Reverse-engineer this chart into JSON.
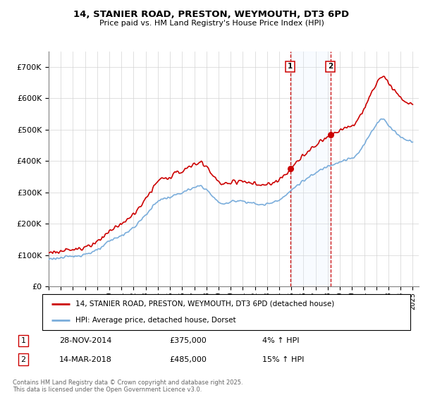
{
  "title_line1": "14, STANIER ROAD, PRESTON, WEYMOUTH, DT3 6PD",
  "title_line2": "Price paid vs. HM Land Registry's House Price Index (HPI)",
  "legend_entry1": "14, STANIER ROAD, PRESTON, WEYMOUTH, DT3 6PD (detached house)",
  "legend_entry2": "HPI: Average price, detached house, Dorset",
  "annotation1_label": "1",
  "annotation1_date": "28-NOV-2014",
  "annotation1_price": "£375,000",
  "annotation1_hpi": "4% ↑ HPI",
  "annotation2_label": "2",
  "annotation2_date": "14-MAR-2018",
  "annotation2_price": "£485,000",
  "annotation2_hpi": "15% ↑ HPI",
  "footnote": "Contains HM Land Registry data © Crown copyright and database right 2025.\nThis data is licensed under the Open Government Licence v3.0.",
  "price_color": "#cc0000",
  "hpi_color": "#7aaddb",
  "vline_color": "#cc0000",
  "shade_color": "#ddeeff",
  "ylim_max": 750000,
  "ylim_min": 0,
  "purchase1_year": 2014.92,
  "purchase1_value": 375000,
  "purchase2_year": 2018.21,
  "purchase2_value": 485000
}
